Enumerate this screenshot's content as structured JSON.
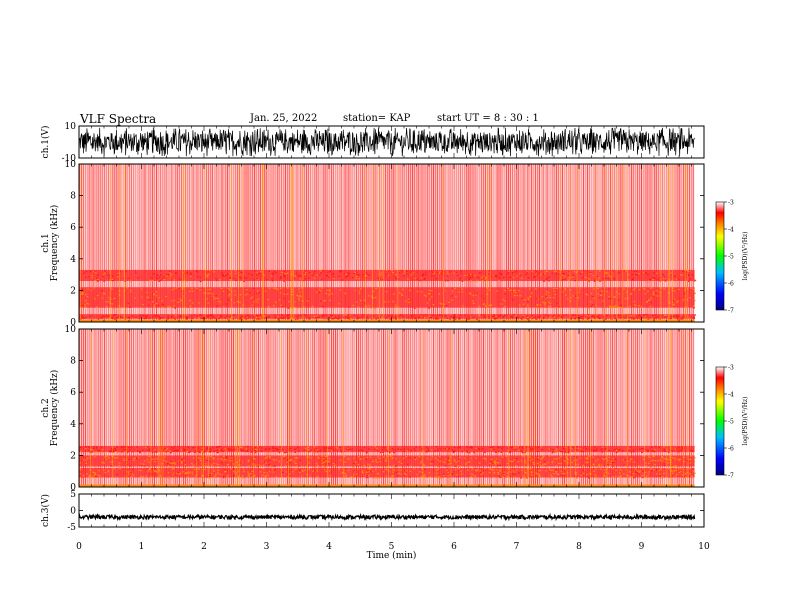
{
  "header": {
    "title": "VLF Spectra",
    "date": "Jan. 25, 2022",
    "station": "station= KAP",
    "start_ut": "start UT = 8 : 30 : 1"
  },
  "chart_data": [
    {
      "type": "line",
      "panel": "ch1-waveform",
      "ylabel": "ch.1(V)",
      "ylim": [
        -10,
        10
      ],
      "yticks": [
        -10,
        10
      ],
      "xlim": [
        0,
        10
      ],
      "series_color": "#000000",
      "description_values": {
        "typical_min": -7,
        "typical_max": 8
      }
    },
    {
      "type": "heatmap",
      "panel": "ch1-spectrogram",
      "ylabel": "ch.1\nFrequency (kHz)",
      "ylabel_lines": [
        "ch.1",
        "Frequency (kHz)"
      ],
      "ylim": [
        0,
        10
      ],
      "yticks": [
        0,
        2,
        4,
        6,
        8,
        10
      ],
      "xlim": [
        0,
        10
      ],
      "data_end_min": 9.85,
      "bands_khz": [
        {
          "from": 0.2,
          "to": 0.5,
          "level": -4.0
        },
        {
          "from": 0.9,
          "to": 2.2,
          "level": -3.6
        },
        {
          "from": 2.6,
          "to": 3.3,
          "level": -3.9
        }
      ],
      "colorbar": {
        "label": "log(PSD)(V²/Hz)",
        "ticks": [
          -3,
          -4,
          -5,
          -6,
          -7
        ],
        "range": [
          -7,
          -3
        ]
      }
    },
    {
      "type": "heatmap",
      "panel": "ch2-spectrogram",
      "ylabel": "ch.2\nFrequency (kHz)",
      "ylabel_lines": [
        "ch.2",
        "Frequency (kHz)"
      ],
      "ylim": [
        0,
        10
      ],
      "yticks": [
        0,
        2,
        4,
        6,
        8,
        10
      ],
      "xlim": [
        0,
        10
      ],
      "data_end_min": 9.85,
      "bands_khz": [
        {
          "from": 0.6,
          "to": 1.2,
          "level": -3.6
        },
        {
          "from": 1.3,
          "to": 2.0,
          "level": -3.6
        },
        {
          "from": 2.2,
          "to": 2.6,
          "level": -4.0
        }
      ],
      "colorbar": {
        "label": "log(PSD)(V²/Hz)",
        "ticks": [
          -3,
          -4,
          -5,
          -6,
          -7
        ],
        "range": [
          -7,
          -3
        ]
      }
    },
    {
      "type": "line",
      "panel": "ch3-waveform",
      "ylabel": "ch.3(V)",
      "ylim": [
        -5,
        5
      ],
      "yticks": [
        -5,
        0,
        5
      ],
      "xlim": [
        0,
        10
      ],
      "xticks": [
        0,
        1,
        2,
        3,
        4,
        5,
        6,
        7,
        8,
        9,
        10
      ],
      "xlabel": "Time (min)",
      "series_color": "#000000",
      "description_values": {
        "center": -2,
        "amplitude": 0.6
      }
    }
  ]
}
